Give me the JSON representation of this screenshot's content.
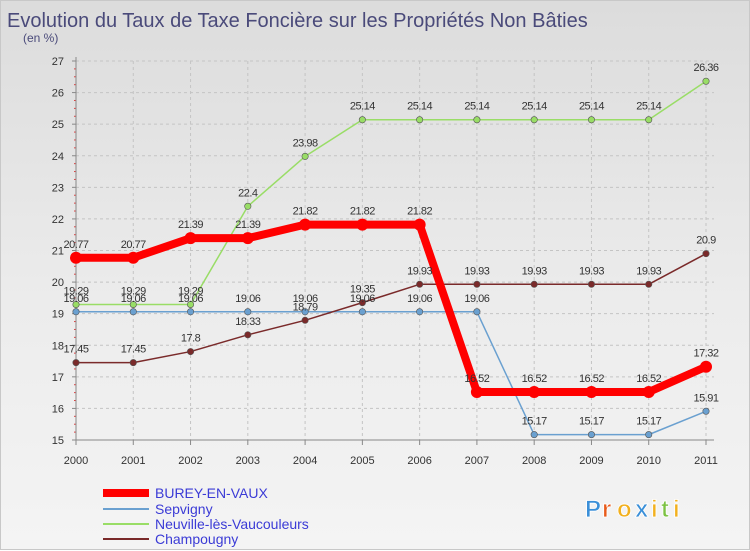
{
  "chart_data": {
    "type": "line",
    "title": "Evolution du Taux de Taxe Foncière sur les Propriétés Non Bâties",
    "subtitle": "(en %)",
    "xlabel": "",
    "ylabel": "(en %)",
    "ylim": [
      15,
      27
    ],
    "yticks": [
      "15",
      "16",
      "17",
      "18",
      "19",
      "20",
      "21",
      "22",
      "23",
      "24",
      "25",
      "26",
      "27"
    ],
    "x": [
      "2000",
      "2001",
      "2002",
      "2003",
      "2004",
      "2005",
      "2006",
      "2007",
      "2008",
      "2009",
      "2010",
      "2011"
    ],
    "grid": true,
    "legend_position": "bottom-left",
    "series": [
      {
        "name": "BUREY-EN-VAUX",
        "color": "#ff0000",
        "values": [
          20.77,
          20.77,
          21.39,
          21.39,
          21.82,
          21.82,
          21.82,
          16.52,
          16.52,
          16.52,
          16.52,
          17.32
        ],
        "labels": [
          "20.77",
          "20.77",
          "21.39",
          "21.39",
          "21.82",
          "21.82",
          "21.82",
          "16.52",
          "16.52",
          "16.52",
          "16.52",
          "17.32"
        ]
      },
      {
        "name": "Sepvigny",
        "color": "#6aa0d0",
        "values": [
          19.06,
          19.06,
          19.06,
          19.06,
          19.06,
          19.06,
          19.06,
          19.06,
          15.17,
          15.17,
          15.17,
          15.91
        ],
        "labels": [
          "19.06",
          "19.06",
          "19.06",
          "19.06",
          "19.06",
          "19.06",
          "19.06",
          "19.06",
          "15.17",
          "15.17",
          "15.17",
          "15.91"
        ]
      },
      {
        "name": "Neuville-lès-Vaucouleurs",
        "color": "#99dd66",
        "values": [
          19.29,
          19.29,
          19.29,
          22.4,
          23.98,
          25.14,
          25.14,
          25.14,
          25.14,
          25.14,
          25.14,
          26.36
        ],
        "labels": [
          "19.29",
          "19.29",
          "19.29",
          "22.4",
          "23.98",
          "25.14",
          "25.14",
          "25.14",
          "25.14",
          "25.14",
          "25.14",
          "26.36"
        ]
      },
      {
        "name": "Champougny",
        "color": "#7a2a2a",
        "values": [
          17.45,
          17.45,
          17.8,
          18.33,
          18.79,
          19.35,
          19.93,
          19.93,
          19.93,
          19.93,
          19.93,
          20.9
        ],
        "labels": [
          "17.45",
          "17.45",
          "17.8",
          "18.33",
          "18.79",
          "19.35",
          "19.93",
          "19.93",
          "19.93",
          "19.93",
          "19.93",
          "20.9"
        ]
      }
    ]
  },
  "brand": {
    "letters": [
      "P",
      "r",
      "o",
      "x",
      "i",
      "t",
      "i"
    ],
    "colors": [
      "#3a8fd8",
      "#e85a1a",
      "#f2b01e",
      "#3a8fd8",
      "#f2b01e",
      "#7cc242",
      "#f2b01e"
    ]
  }
}
